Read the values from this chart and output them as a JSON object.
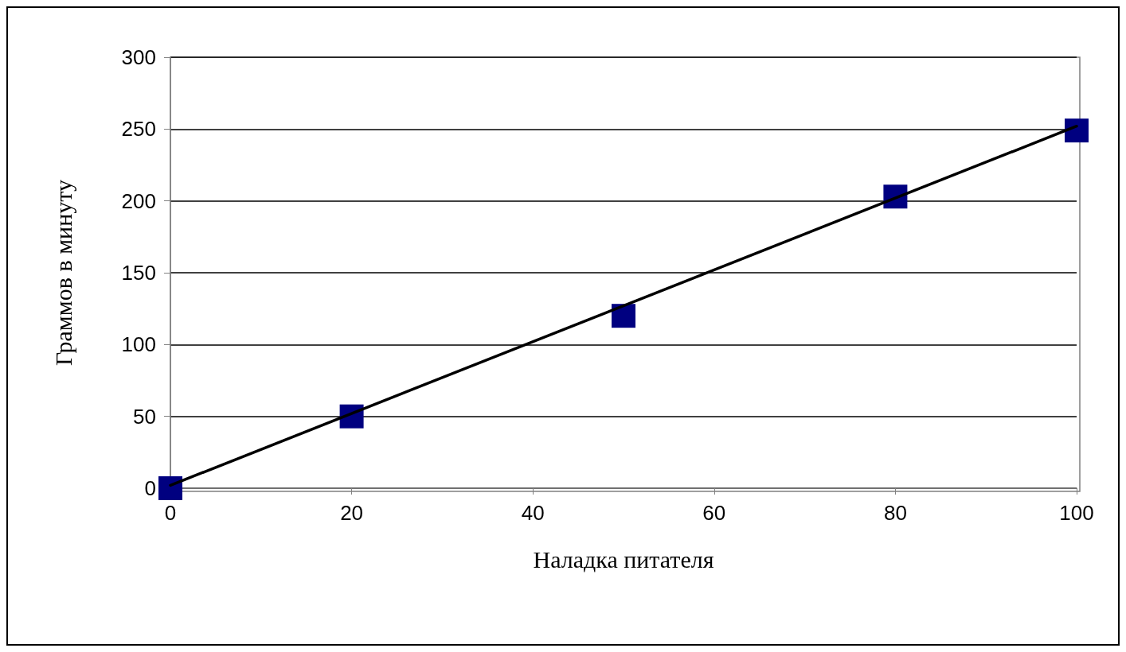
{
  "chart_data": {
    "type": "scatter",
    "xlabel": "Наладка питателя",
    "ylabel": "Граммов в минуту",
    "x": [
      0,
      20,
      50,
      80,
      100
    ],
    "xlim": [
      0,
      100
    ],
    "xticks": [
      0,
      20,
      40,
      60,
      80,
      100
    ],
    "ylim": [
      0,
      300
    ],
    "yticks": [
      0,
      50,
      100,
      150,
      200,
      250,
      300
    ],
    "grid": "y",
    "marker": "square",
    "series": [
      {
        "color": "#000080",
        "values": [
          0,
          50,
          120,
          203,
          249
        ]
      },
      {
        "type": "line",
        "color": "#000000",
        "x": [
          0,
          100
        ],
        "values": [
          2,
          252
        ],
        "marker": "none",
        "line_style": "solid"
      }
    ]
  }
}
